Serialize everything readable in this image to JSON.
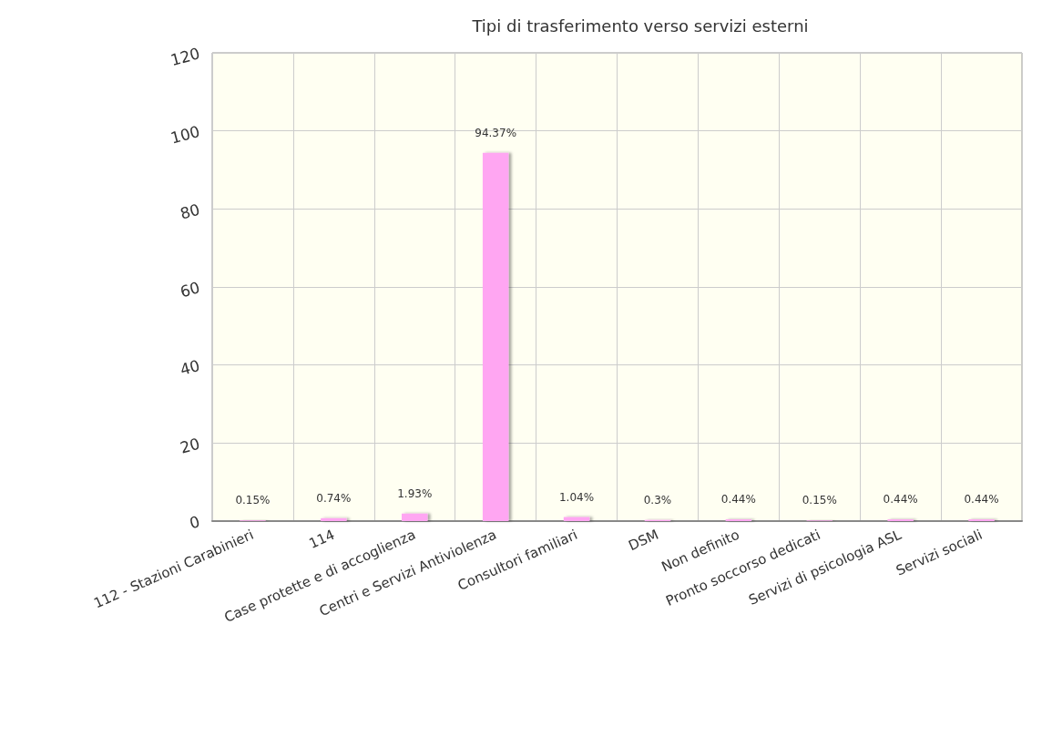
{
  "chart_data": {
    "type": "bar",
    "title": "Tipi di trasferimento verso servizi esterni",
    "categories": [
      "112 - Stazioni Carabinieri",
      "114",
      "Case protette e di accoglienza",
      "Centri e Servizi Antiviolenza",
      "Consultori familiari",
      "DSM",
      "Non definito",
      "Pronto soccorso dedicati",
      "Servizi di psicologia ASL",
      "Servizi sociali"
    ],
    "values": [
      0.15,
      0.74,
      1.93,
      94.37,
      1.04,
      0.3,
      0.44,
      0.15,
      0.44,
      0.44
    ],
    "value_labels": [
      "0.15%",
      "0.74%",
      "1.93%",
      "94.37%",
      "1.04%",
      "0.3%",
      "0.44%",
      "0.15%",
      "0.44%",
      "0.44%"
    ],
    "color": "#ffa6f2",
    "ylim": [
      0,
      120
    ],
    "yticks": [
      0,
      20,
      40,
      60,
      80,
      100,
      120
    ],
    "grid": true
  }
}
